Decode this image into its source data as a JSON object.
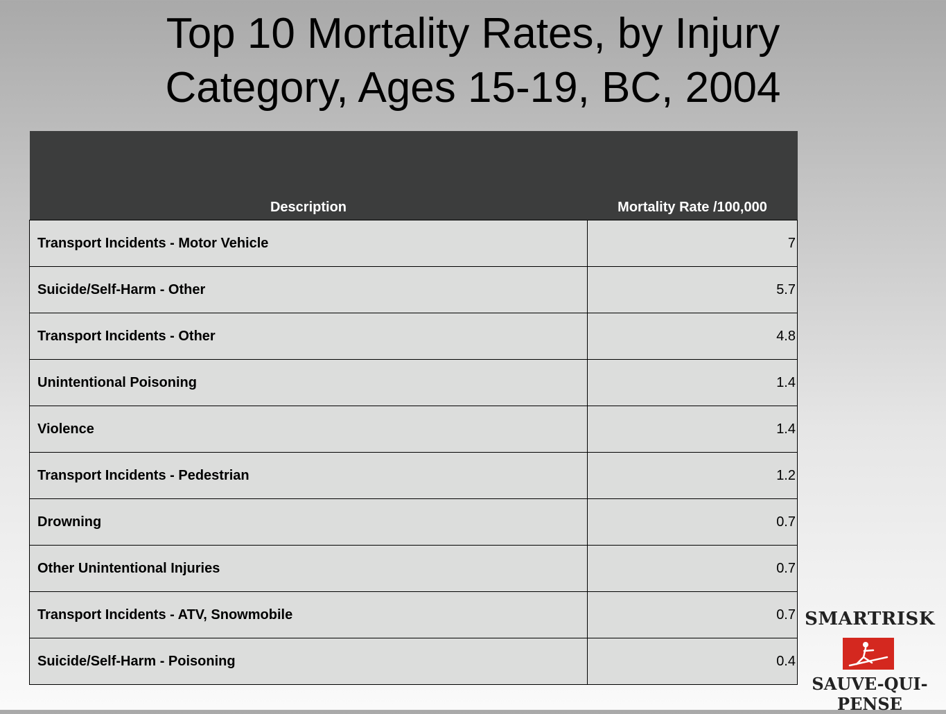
{
  "title_line1": "Top 10 Mortality Rates, by Injury",
  "title_line2": "Category,  Ages 15-19, BC, 2004",
  "chart_data": {
    "type": "table",
    "columns": [
      "Description",
      "Mortality Rate /100,000"
    ],
    "rows": [
      {
        "description": "Transport Incidents  - Motor Vehicle",
        "rate": "7"
      },
      {
        "description": "Suicide/Self-Harm  - Other",
        "rate": "5.7"
      },
      {
        "description": "Transport Incidents  - Other",
        "rate": "4.8"
      },
      {
        "description": "Unintentional  Poisoning",
        "rate": "1.4"
      },
      {
        "description": "Violence",
        "rate": "1.4"
      },
      {
        "description": "Transport Incidents  - Pedestrian",
        "rate": "1.2"
      },
      {
        "description": "Drowning",
        "rate": "0.7"
      },
      {
        "description": "Other  Unintentional  Injuries",
        "rate": "0.7"
      },
      {
        "description": "Transport Incidents  - ATV, Snowmobile",
        "rate": "0.7"
      },
      {
        "description": "Suicide/Self-Harm  - Poisoning",
        "rate": "0.4"
      }
    ]
  },
  "logo": {
    "top_text": "SMARTRISK",
    "bottom_text": "SAUVE-QUI-PENSE",
    "box_color": "#d4281f"
  }
}
